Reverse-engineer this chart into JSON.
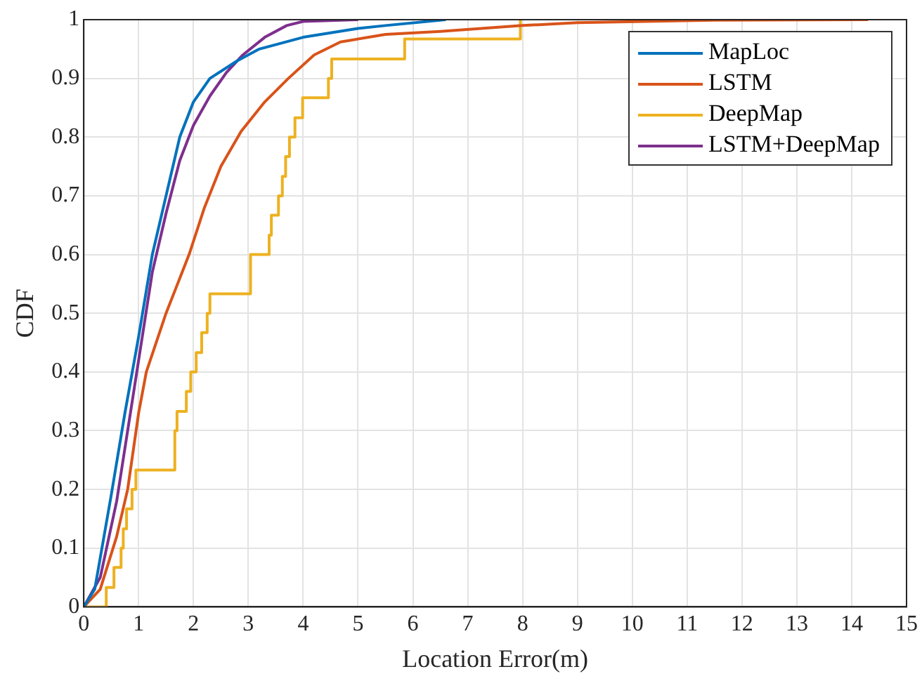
{
  "chart_data": {
    "type": "line",
    "xlabel": "Location Error(m)",
    "ylabel": "CDF",
    "xlim": [
      0,
      15
    ],
    "xticks": [
      0,
      1,
      2,
      3,
      4,
      5,
      6,
      7,
      8,
      9,
      10,
      11,
      12,
      13,
      14,
      15
    ],
    "ylim": [
      0,
      1
    ],
    "yticks": [
      0,
      0.1,
      0.2,
      0.3,
      0.4,
      0.5,
      0.6,
      0.7,
      0.8,
      0.9,
      1
    ],
    "grid": true,
    "legend": "top right",
    "marker": "none",
    "series": [
      {
        "name": "MapLoc",
        "color": "#0072bd",
        "x": [
          0,
          0.2,
          0.5,
          0.75,
          1,
          1.25,
          1.5,
          1.75,
          2,
          2.3,
          2.8,
          3.2,
          4,
          5,
          5.5,
          6.6
        ],
        "values": [
          0,
          0.03,
          0.19,
          0.33,
          0.46,
          0.6,
          0.7,
          0.8,
          0.86,
          0.9,
          0.93,
          0.95,
          0.97,
          0.985,
          0.99,
          1
        ]
      },
      {
        "name": "LSTM",
        "color": "#d95319",
        "x": [
          0,
          0.3,
          0.6,
          0.8,
          1,
          1.14,
          1.5,
          1.92,
          2.2,
          2.5,
          2.87,
          3.3,
          3.73,
          4.2,
          4.68,
          5.5,
          6.5,
          8,
          9,
          11.5,
          14.3
        ],
        "values": [
          0,
          0.03,
          0.12,
          0.2,
          0.33,
          0.4,
          0.5,
          0.6,
          0.68,
          0.75,
          0.81,
          0.86,
          0.9,
          0.94,
          0.962,
          0.975,
          0.98,
          0.99,
          0.995,
          0.999,
          1
        ]
      },
      {
        "name": "DeepMap",
        "color": "#edb120",
        "type": "step",
        "x": [
          0,
          0.41,
          0.55,
          0.68,
          0.72,
          0.78,
          0.88,
          0.95,
          1.66,
          1.7,
          1.87,
          1.95,
          2.05,
          2.15,
          2.25,
          2.3,
          3.04,
          3.38,
          3.42,
          3.55,
          3.62,
          3.68,
          3.75,
          3.85,
          3.99,
          4.46,
          4.52,
          5.85,
          7.96
        ],
        "values": [
          0,
          0.033,
          0.067,
          0.1,
          0.133,
          0.167,
          0.2,
          0.233,
          0.3,
          0.333,
          0.367,
          0.4,
          0.433,
          0.467,
          0.5,
          0.533,
          0.6,
          0.633,
          0.667,
          0.7,
          0.733,
          0.767,
          0.8,
          0.833,
          0.867,
          0.9,
          0.933,
          0.967,
          1
        ]
      },
      {
        "name": "LSTM+DeepMap",
        "color": "#7e2f8e",
        "x": [
          0,
          0.3,
          0.6,
          0.8,
          1,
          1.25,
          1.5,
          1.75,
          2,
          2.3,
          2.6,
          2.9,
          3.3,
          3.7,
          4,
          5
        ],
        "values": [
          0,
          0.05,
          0.18,
          0.3,
          0.42,
          0.57,
          0.67,
          0.76,
          0.82,
          0.87,
          0.91,
          0.94,
          0.97,
          0.99,
          0.997,
          1
        ]
      }
    ]
  }
}
